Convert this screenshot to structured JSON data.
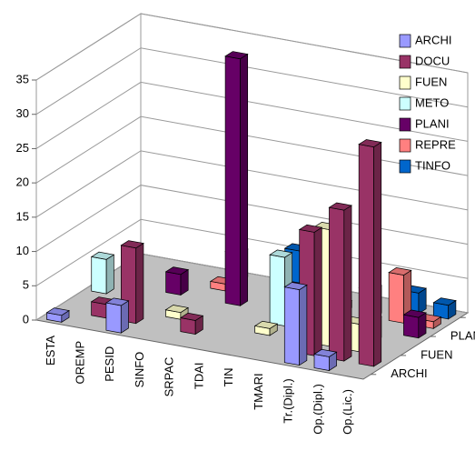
{
  "chart_data": {
    "type": "bar3d",
    "categories": [
      "ESTA",
      "OREMP",
      "PESID",
      "SINFO",
      "SRPAC",
      "TDAI",
      "TIN",
      "TMARI",
      "Tr.(Dipl.)",
      "Op.(Dipl.)",
      "Op.(Lic.)"
    ],
    "series": [
      {
        "name": "ARCHI",
        "color": "#9999ff",
        "values": [
          1,
          null,
          4,
          null,
          null,
          null,
          null,
          null,
          11,
          2,
          null
        ]
      },
      {
        "name": "DOCU",
        "color": "#993366",
        "values": [
          null,
          2,
          11,
          null,
          2,
          null,
          null,
          null,
          18,
          22,
          32
        ]
      },
      {
        "name": "FUEN",
        "color": "#ffffcc",
        "values": [
          null,
          null,
          null,
          1,
          null,
          null,
          1,
          null,
          17,
          4,
          null
        ]
      },
      {
        "name": "METO",
        "color": "#ccffff",
        "values": [
          5,
          null,
          null,
          null,
          null,
          null,
          10,
          null,
          null,
          3,
          null
        ]
      },
      {
        "name": "PLANI",
        "color": "#660066",
        "values": [
          null,
          null,
          3,
          null,
          36,
          null,
          4,
          null,
          null,
          null,
          3
        ]
      },
      {
        "name": "REPRE",
        "color": "#ff8080",
        "values": [
          null,
          null,
          null,
          1,
          null,
          null,
          1,
          1,
          4,
          7,
          1
        ]
      },
      {
        "name": "TINFO",
        "color": "#0066cc",
        "values": [
          null,
          null,
          null,
          4,
          null,
          6,
          2,
          null,
          null,
          3,
          2
        ]
      }
    ],
    "depth_labels": [
      0,
      2,
      4,
      6
    ],
    "ylim": [
      0,
      35
    ],
    "yticks": [
      0,
      5,
      10,
      15,
      20,
      25,
      30,
      35
    ],
    "grid": true,
    "legend": "right"
  }
}
